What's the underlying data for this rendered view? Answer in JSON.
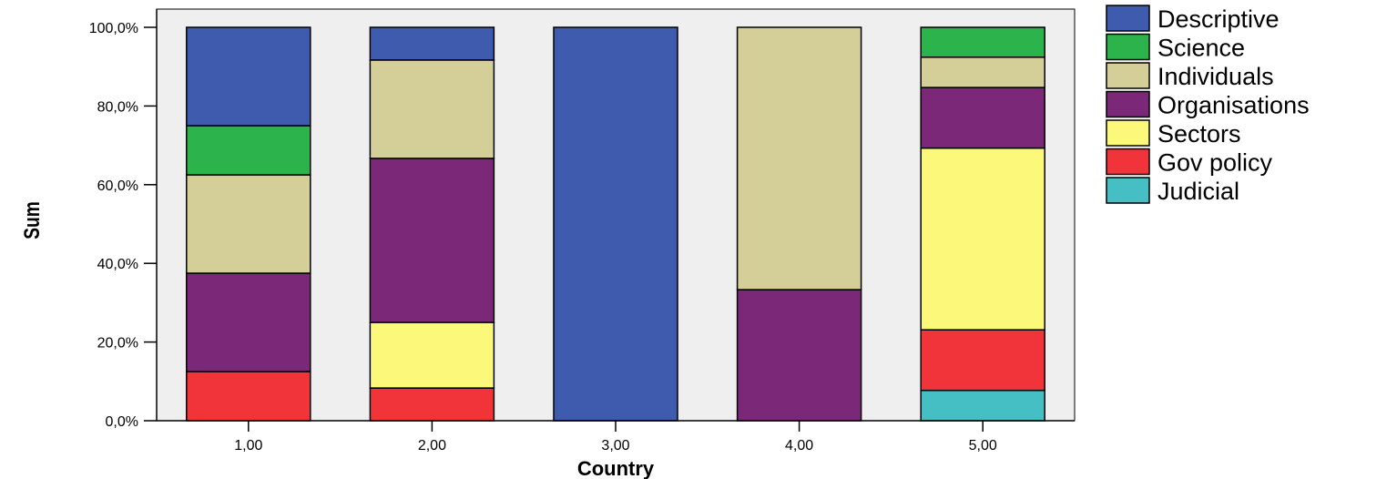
{
  "chart_data": {
    "type": "bar",
    "stacked": true,
    "percent_scale": true,
    "xlabel": "Country",
    "ylabel": "Sum",
    "categories": [
      "1,00",
      "2,00",
      "3,00",
      "4,00",
      "5,00"
    ],
    "ylim": [
      0,
      100
    ],
    "y_ticks": [
      0,
      20,
      40,
      60,
      80,
      100
    ],
    "y_tick_labels": [
      "0,0%",
      "20,0%",
      "40,0%",
      "60,0%",
      "80,0%",
      "100,0%"
    ],
    "grid": false,
    "plot_background": "#efefef",
    "legend_position": "right",
    "series": [
      {
        "name": "Judicial",
        "color": "#46bfc4",
        "values": [
          0,
          0,
          0,
          0,
          7.7
        ]
      },
      {
        "name": "Gov policy",
        "color": "#f0343a",
        "values": [
          12.5,
          8.3,
          0,
          0,
          15.4
        ]
      },
      {
        "name": "Sectors",
        "color": "#fbf87a",
        "values": [
          0,
          16.7,
          0,
          0,
          46.2
        ]
      },
      {
        "name": "Organisations",
        "color": "#7b2879",
        "values": [
          25.0,
          41.7,
          0,
          33.3,
          15.4
        ]
      },
      {
        "name": "Individuals",
        "color": "#d4cf98",
        "values": [
          25.0,
          25.0,
          0,
          66.7,
          7.7
        ]
      },
      {
        "name": "Science",
        "color": "#2db34c",
        "values": [
          12.5,
          0,
          0,
          0,
          7.6
        ]
      },
      {
        "name": "Descriptive",
        "color": "#3f5bad",
        "values": [
          25.0,
          8.3,
          100,
          0,
          0
        ]
      }
    ],
    "legend_order": [
      "Descriptive",
      "Science",
      "Individuals",
      "Organisations",
      "Sectors",
      "Gov policy",
      "Judicial"
    ]
  }
}
